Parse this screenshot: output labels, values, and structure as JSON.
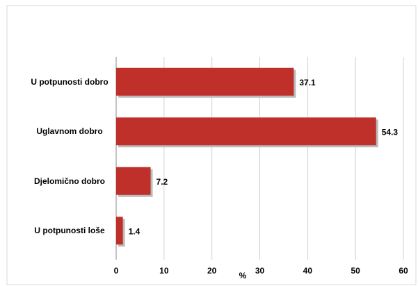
{
  "chart_data": {
    "type": "bar",
    "orientation": "horizontal",
    "categories": [
      "U potpunosti dobro",
      "Uglavnom dobro",
      "Djelomično dobro",
      "U potpunosti loše"
    ],
    "values": [
      37.1,
      54.3,
      7.2,
      1.4
    ],
    "color": "#c0302a",
    "xlabel": "%",
    "xlim": [
      0,
      60
    ],
    "xticks": [
      0,
      10,
      20,
      30,
      40,
      50,
      60
    ],
    "grid": true
  }
}
